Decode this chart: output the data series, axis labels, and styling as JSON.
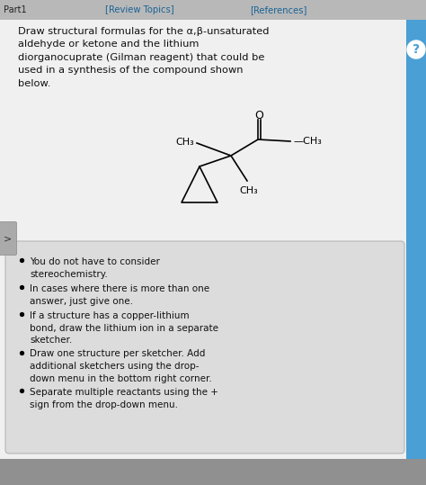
{
  "bg_color": "#c8c8c8",
  "header_bg": "#b0b0b0",
  "header_text_color": "#1a6496",
  "header_part": "Part1",
  "header_review": "[Review Topics]",
  "header_ref": "[References]",
  "question_text": "Draw structural formulas for the α,β-unsaturated\naldehyde or ketone and the lithium\ndiorganocuprate (Gilman reagent) that could be\nused in a synthesis of the compound shown\nbelow.",
  "bullet_points": [
    "You do not have to consider\nstereochemistry.",
    "In cases where there is more than one\nanswer, just give one.",
    "If a structure has a copper-lithium\nbond, draw the lithium ion in a separate\nsketcher.",
    "Draw one structure per sketcher. Add\nadditional sketchers using the drop-\ndown menu in the bottom right corner.",
    "Separate multiple reactants using the +\nsign from the drop-down menu."
  ],
  "box_bg": "#dcdcdc",
  "body_bg": "#f0f0f0",
  "sidebar_color": "#4a9fd4",
  "question_icon_color": "#4a9fd4"
}
